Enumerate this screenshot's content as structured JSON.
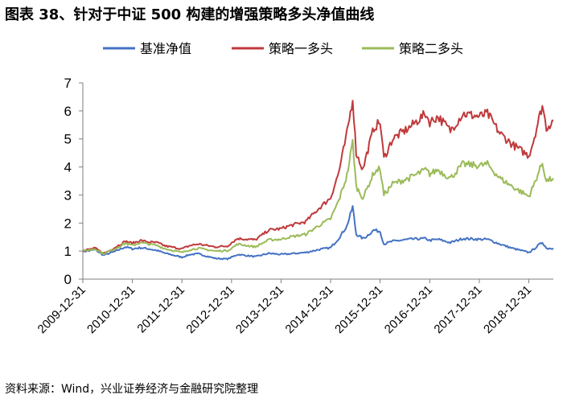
{
  "title": "图表 38、针对于中证 500 构建的增强策略多头净值曲线",
  "source": "资料来源：Wind，兴业证券经济与金融研究院整理",
  "colors": {
    "base": "#4472c4",
    "strategy1": "#c0393b",
    "strategy2": "#9bbb59",
    "axis": "#7f7f7f"
  },
  "chart_data": {
    "type": "line",
    "legend_position": "top",
    "grid": false,
    "ylim": [
      0,
      7
    ],
    "yticks": [
      "0",
      "1",
      "2",
      "3",
      "4",
      "5",
      "6",
      "7"
    ],
    "x_ticks": [
      "2009-12-31",
      "2010-12-31",
      "2011-12-31",
      "2012-12-31",
      "2013-12-31",
      "2014-12-31",
      "2015-12-31",
      "2016-12-31",
      "2017-12-31",
      "2018-12-31"
    ],
    "xlim": [
      "2009-12-31",
      "2019-06-30"
    ],
    "series": [
      {
        "name": "基准净值",
        "color_key": "base",
        "points": [
          [
            "2009-12-31",
            1.0
          ],
          [
            "2010-02-01",
            1.0
          ],
          [
            "2010-04-01",
            1.05
          ],
          [
            "2010-06-01",
            0.85
          ],
          [
            "2010-07-15",
            0.92
          ],
          [
            "2010-09-01",
            1.0
          ],
          [
            "2010-11-10",
            1.15
          ],
          [
            "2010-12-31",
            1.08
          ],
          [
            "2011-03-01",
            1.12
          ],
          [
            "2011-05-01",
            1.08
          ],
          [
            "2011-07-01",
            1.02
          ],
          [
            "2011-09-01",
            0.92
          ],
          [
            "2011-12-31",
            0.78
          ],
          [
            "2012-03-01",
            0.88
          ],
          [
            "2012-05-01",
            0.9
          ],
          [
            "2012-07-01",
            0.82
          ],
          [
            "2012-09-01",
            0.74
          ],
          [
            "2012-12-01",
            0.72
          ],
          [
            "2012-12-31",
            0.78
          ],
          [
            "2013-02-15",
            0.88
          ],
          [
            "2013-06-25",
            0.8
          ],
          [
            "2013-10-01",
            0.92
          ],
          [
            "2013-12-31",
            0.88
          ],
          [
            "2014-03-01",
            0.9
          ],
          [
            "2014-07-01",
            0.95
          ],
          [
            "2014-10-01",
            1.05
          ],
          [
            "2014-12-31",
            1.12
          ],
          [
            "2015-03-01",
            1.45
          ],
          [
            "2015-05-01",
            1.9
          ],
          [
            "2015-06-12",
            2.58
          ],
          [
            "2015-07-08",
            1.6
          ],
          [
            "2015-08-26",
            1.45
          ],
          [
            "2015-09-15",
            1.5
          ],
          [
            "2015-11-15",
            1.75
          ],
          [
            "2015-12-31",
            1.7
          ],
          [
            "2016-01-28",
            1.25
          ],
          [
            "2016-04-01",
            1.35
          ],
          [
            "2016-08-01",
            1.42
          ],
          [
            "2016-11-30",
            1.45
          ],
          [
            "2016-12-31",
            1.38
          ],
          [
            "2017-03-01",
            1.42
          ],
          [
            "2017-06-01",
            1.3
          ],
          [
            "2017-09-01",
            1.45
          ],
          [
            "2017-12-31",
            1.42
          ],
          [
            "2018-03-01",
            1.42
          ],
          [
            "2018-06-01",
            1.25
          ],
          [
            "2018-09-01",
            1.1
          ],
          [
            "2018-12-31",
            0.95
          ],
          [
            "2019-02-01",
            1.05
          ],
          [
            "2019-04-10",
            1.32
          ],
          [
            "2019-05-10",
            1.1
          ],
          [
            "2019-06-30",
            1.1
          ]
        ]
      },
      {
        "name": "策略一多头",
        "color_key": "strategy1",
        "points": [
          [
            "2009-12-31",
            1.0
          ],
          [
            "2010-02-01",
            1.05
          ],
          [
            "2010-04-01",
            1.1
          ],
          [
            "2010-06-01",
            0.92
          ],
          [
            "2010-07-15",
            1.02
          ],
          [
            "2010-09-01",
            1.15
          ],
          [
            "2010-11-10",
            1.35
          ],
          [
            "2010-12-31",
            1.28
          ],
          [
            "2011-03-01",
            1.38
          ],
          [
            "2011-05-01",
            1.32
          ],
          [
            "2011-07-01",
            1.3
          ],
          [
            "2011-09-01",
            1.18
          ],
          [
            "2011-12-31",
            1.08
          ],
          [
            "2012-03-01",
            1.2
          ],
          [
            "2012-05-01",
            1.25
          ],
          [
            "2012-07-01",
            1.2
          ],
          [
            "2012-09-01",
            1.15
          ],
          [
            "2012-12-01",
            1.18
          ],
          [
            "2012-12-31",
            1.3
          ],
          [
            "2013-02-15",
            1.45
          ],
          [
            "2013-06-25",
            1.4
          ],
          [
            "2013-10-01",
            1.75
          ],
          [
            "2013-12-31",
            1.8
          ],
          [
            "2014-03-01",
            1.9
          ],
          [
            "2014-07-01",
            2.05
          ],
          [
            "2014-10-01",
            2.5
          ],
          [
            "2014-12-31",
            2.9
          ],
          [
            "2015-03-01",
            3.8
          ],
          [
            "2015-05-01",
            5.2
          ],
          [
            "2015-06-12",
            6.45
          ],
          [
            "2015-07-08",
            4.5
          ],
          [
            "2015-08-26",
            3.9
          ],
          [
            "2015-09-15",
            4.3
          ],
          [
            "2015-11-15",
            5.4
          ],
          [
            "2015-12-31",
            5.6
          ],
          [
            "2016-01-28",
            4.3
          ],
          [
            "2016-04-01",
            5.0
          ],
          [
            "2016-08-01",
            5.4
          ],
          [
            "2016-11-30",
            5.9
          ],
          [
            "2016-12-31",
            5.6
          ],
          [
            "2017-03-01",
            5.8
          ],
          [
            "2017-06-01",
            5.3
          ],
          [
            "2017-09-01",
            5.9
          ],
          [
            "2017-12-31",
            5.8
          ],
          [
            "2018-03-01",
            5.9
          ],
          [
            "2018-06-01",
            5.2
          ],
          [
            "2018-09-01",
            4.8
          ],
          [
            "2018-12-31",
            4.4
          ],
          [
            "2019-02-01",
            4.9
          ],
          [
            "2019-04-10",
            6.2
          ],
          [
            "2019-05-10",
            5.4
          ],
          [
            "2019-06-30",
            5.65
          ]
        ]
      },
      {
        "name": "策略二多头",
        "color_key": "strategy2",
        "points": [
          [
            "2009-12-31",
            1.0
          ],
          [
            "2010-02-01",
            1.03
          ],
          [
            "2010-04-01",
            1.08
          ],
          [
            "2010-06-01",
            0.9
          ],
          [
            "2010-07-15",
            1.0
          ],
          [
            "2010-09-01",
            1.1
          ],
          [
            "2010-11-10",
            1.28
          ],
          [
            "2010-12-31",
            1.2
          ],
          [
            "2011-03-01",
            1.3
          ],
          [
            "2011-05-01",
            1.25
          ],
          [
            "2011-07-01",
            1.2
          ],
          [
            "2011-09-01",
            1.08
          ],
          [
            "2011-12-31",
            0.95
          ],
          [
            "2012-03-01",
            1.05
          ],
          [
            "2012-05-01",
            1.1
          ],
          [
            "2012-07-01",
            1.05
          ],
          [
            "2012-09-01",
            1.0
          ],
          [
            "2012-12-01",
            1.02
          ],
          [
            "2012-12-31",
            1.1
          ],
          [
            "2013-02-15",
            1.25
          ],
          [
            "2013-06-25",
            1.15
          ],
          [
            "2013-10-01",
            1.4
          ],
          [
            "2013-12-31",
            1.42
          ],
          [
            "2014-03-01",
            1.5
          ],
          [
            "2014-07-01",
            1.6
          ],
          [
            "2014-10-01",
            1.9
          ],
          [
            "2014-12-31",
            2.15
          ],
          [
            "2015-03-01",
            2.8
          ],
          [
            "2015-05-01",
            3.7
          ],
          [
            "2015-06-12",
            4.9
          ],
          [
            "2015-07-08",
            3.3
          ],
          [
            "2015-08-26",
            2.9
          ],
          [
            "2015-09-15",
            3.1
          ],
          [
            "2015-11-15",
            3.8
          ],
          [
            "2015-12-31",
            3.95
          ],
          [
            "2016-01-28",
            3.0
          ],
          [
            "2016-04-01",
            3.4
          ],
          [
            "2016-08-01",
            3.6
          ],
          [
            "2016-11-30",
            3.9
          ],
          [
            "2016-12-31",
            3.75
          ],
          [
            "2017-03-01",
            3.9
          ],
          [
            "2017-06-01",
            3.6
          ],
          [
            "2017-09-01",
            4.1
          ],
          [
            "2017-12-31",
            4.05
          ],
          [
            "2018-03-01",
            4.1
          ],
          [
            "2018-06-01",
            3.6
          ],
          [
            "2018-09-01",
            3.3
          ],
          [
            "2018-12-31",
            2.95
          ],
          [
            "2019-02-01",
            3.3
          ],
          [
            "2019-04-10",
            4.15
          ],
          [
            "2019-05-10",
            3.5
          ],
          [
            "2019-06-30",
            3.6
          ]
        ]
      }
    ]
  }
}
